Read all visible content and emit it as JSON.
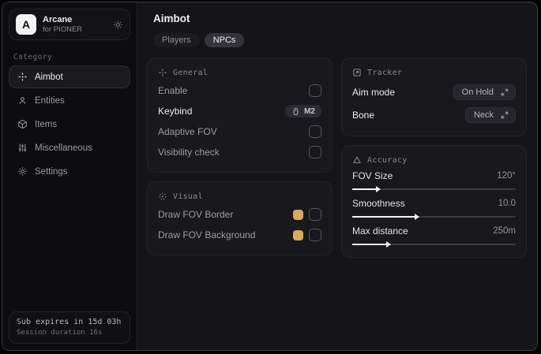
{
  "app": {
    "name": "Arcane",
    "subtitle": "for PIONER",
    "logo_letter": "A"
  },
  "sidebar": {
    "category_label": "Category",
    "items": [
      {
        "label": "Aimbot",
        "icon": "crosshair-icon",
        "selected": true
      },
      {
        "label": "Entities",
        "icon": "entities-icon",
        "selected": false
      },
      {
        "label": "Items",
        "icon": "cube-icon",
        "selected": false
      },
      {
        "label": "Miscellaneous",
        "icon": "sliders-icon",
        "selected": false
      },
      {
        "label": "Settings",
        "icon": "gear-icon",
        "selected": false
      }
    ],
    "status": {
      "line1": "Sub expires in 15d 03h",
      "line2": "Session duration 16s"
    }
  },
  "main": {
    "title": "Aimbot",
    "tabs": [
      {
        "label": "Players",
        "selected": false
      },
      {
        "label": "NPCs",
        "selected": true
      }
    ],
    "general": {
      "title": "General",
      "enable_label": "Enable",
      "keybind_label": "Keybind",
      "keybind_value": "M2",
      "adaptive_fov_label": "Adaptive FOV",
      "visibility_check_label": "Visibility check"
    },
    "visual": {
      "title": "Visual",
      "border_label": "Draw FOV Border",
      "background_label": "Draw FOV Background",
      "swatch_color": "#d9a95f"
    },
    "tracker": {
      "title": "Tracker",
      "aim_mode_label": "Aim mode",
      "aim_mode_value": "On Hold",
      "bone_label": "Bone",
      "bone_value": "Neck"
    },
    "accuracy": {
      "title": "Accuracy",
      "sliders": [
        {
          "label": "FOV Size",
          "value": "120°",
          "percent": 14.5
        },
        {
          "label": "Smoothness",
          "value": "10.0",
          "percent": 38
        },
        {
          "label": "Max distance",
          "value": "250m",
          "percent": 21
        }
      ]
    }
  },
  "colors": {
    "accent_gold": "#d9a95f",
    "panel_bg": "#151518",
    "sidebar_bg": "#0d0d0f",
    "card_bg": "#19191d",
    "selected_tab_bg": "#34343b"
  }
}
